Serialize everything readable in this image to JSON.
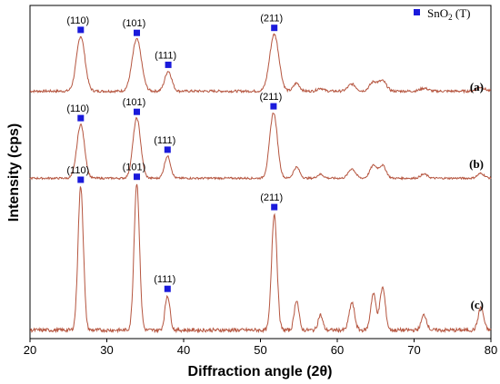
{
  "chart_data": {
    "type": "line",
    "xlabel": "Diffraction angle (2θ)",
    "ylabel": "Intensity (cps)",
    "xlim": [
      20,
      80
    ],
    "xticks": [
      "20",
      "30",
      "40",
      "50",
      "60",
      "70",
      "80"
    ],
    "grid": false,
    "legend": {
      "label": "SnO₂ (T)",
      "color": "#1a1adb",
      "placement": "top-right"
    },
    "line_color": "#b5553f",
    "marker_color": "#1a1adb",
    "series": [
      {
        "name": "(a)",
        "baseline": 0.16,
        "peaks": [
          {
            "x": 26.6,
            "h": 0.55,
            "w": 0.55,
            "label": "(110)"
          },
          {
            "x": 33.9,
            "h": 0.52,
            "w": 0.6,
            "label": "(101)"
          },
          {
            "x": 38.0,
            "h": 0.2,
            "w": 0.45,
            "label": "(111)"
          },
          {
            "x": 51.8,
            "h": 0.57,
            "w": 0.6,
            "label": "(211)"
          }
        ],
        "minor_peaks": [
          {
            "x": 54.7,
            "h": 0.08,
            "w": 0.4
          },
          {
            "x": 57.8,
            "h": 0.03,
            "w": 0.4
          },
          {
            "x": 61.9,
            "h": 0.07,
            "w": 0.5
          },
          {
            "x": 64.7,
            "h": 0.09,
            "w": 0.5
          },
          {
            "x": 65.9,
            "h": 0.1,
            "w": 0.5
          },
          {
            "x": 71.3,
            "h": 0.03,
            "w": 0.5
          },
          {
            "x": 78.7,
            "h": 0.04,
            "w": 0.5
          }
        ]
      },
      {
        "name": "(b)",
        "baseline": 0.1,
        "peaks": [
          {
            "x": 26.6,
            "h": 0.68,
            "w": 0.5,
            "label": "(110)"
          },
          {
            "x": 33.9,
            "h": 0.76,
            "w": 0.5,
            "label": "(101)"
          },
          {
            "x": 37.9,
            "h": 0.28,
            "w": 0.4,
            "label": "(111)"
          },
          {
            "x": 51.7,
            "h": 0.83,
            "w": 0.5,
            "label": "(211)"
          }
        ],
        "minor_peaks": [
          {
            "x": 54.7,
            "h": 0.14,
            "w": 0.4
          },
          {
            "x": 57.8,
            "h": 0.05,
            "w": 0.4
          },
          {
            "x": 61.9,
            "h": 0.12,
            "w": 0.45
          },
          {
            "x": 64.7,
            "h": 0.16,
            "w": 0.45
          },
          {
            "x": 65.9,
            "h": 0.16,
            "w": 0.45
          },
          {
            "x": 71.3,
            "h": 0.05,
            "w": 0.45
          },
          {
            "x": 78.7,
            "h": 0.06,
            "w": 0.45
          }
        ]
      },
      {
        "name": "(c)",
        "baseline": 0.05,
        "peaks": [
          {
            "x": 26.6,
            "h": 0.95,
            "w": 0.35,
            "label": "(110)"
          },
          {
            "x": 33.9,
            "h": 0.97,
            "w": 0.35,
            "label": "(101)"
          },
          {
            "x": 37.9,
            "h": 0.23,
            "w": 0.32,
            "label": "(111)"
          },
          {
            "x": 51.8,
            "h": 0.77,
            "w": 0.35,
            "label": "(211)"
          }
        ],
        "minor_peaks": [
          {
            "x": 54.7,
            "h": 0.2,
            "w": 0.3
          },
          {
            "x": 57.8,
            "h": 0.1,
            "w": 0.3
          },
          {
            "x": 61.9,
            "h": 0.18,
            "w": 0.35
          },
          {
            "x": 64.7,
            "h": 0.24,
            "w": 0.35
          },
          {
            "x": 65.9,
            "h": 0.28,
            "w": 0.35
          },
          {
            "x": 71.3,
            "h": 0.1,
            "w": 0.35
          },
          {
            "x": 78.7,
            "h": 0.15,
            "w": 0.35
          }
        ]
      }
    ]
  }
}
